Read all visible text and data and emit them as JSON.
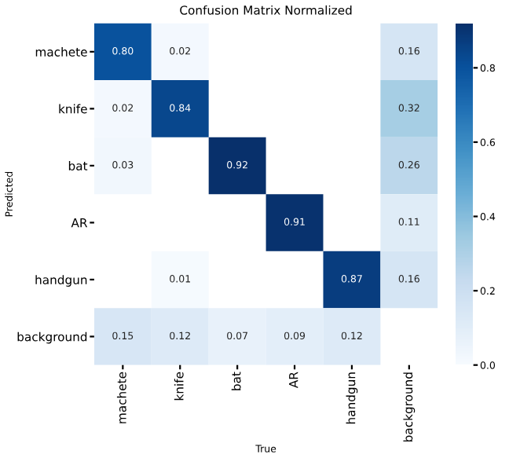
{
  "chart_data": {
    "type": "heatmap",
    "title": "Confusion Matrix Normalized",
    "xlabel": "True",
    "ylabel": "Predicted",
    "categories": [
      "machete",
      "knife",
      "bat",
      "AR",
      "handgun",
      "background"
    ],
    "y_categories": [
      "machete",
      "knife",
      "bat",
      "AR",
      "handgun",
      "background"
    ],
    "cells": [
      [
        0.8,
        0.02,
        null,
        null,
        null,
        0.16
      ],
      [
        0.02,
        0.84,
        null,
        null,
        null,
        0.32
      ],
      [
        0.03,
        null,
        0.92,
        null,
        null,
        0.26
      ],
      [
        null,
        null,
        null,
        0.91,
        null,
        0.11
      ],
      [
        null,
        0.01,
        null,
        null,
        0.87,
        0.16
      ],
      [
        0.15,
        0.12,
        0.07,
        0.09,
        0.12,
        null
      ]
    ],
    "cell_labels": [
      [
        "0.80",
        "0.02",
        null,
        null,
        null,
        "0.16"
      ],
      [
        "0.02",
        "0.84",
        null,
        null,
        null,
        "0.32"
      ],
      [
        "0.03",
        null,
        "0.92",
        null,
        null,
        "0.26"
      ],
      [
        null,
        null,
        null,
        "0.91",
        null,
        "0.11"
      ],
      [
        null,
        "0.01",
        null,
        null,
        "0.87",
        "0.16"
      ],
      [
        "0.15",
        "0.12",
        "0.07",
        "0.09",
        "0.12",
        null
      ]
    ],
    "clim": [
      0,
      0.92
    ],
    "cticks": [
      {
        "value": 0,
        "label": "0.0"
      },
      {
        "value": 0.2,
        "label": "0.2"
      },
      {
        "value": 0.4,
        "label": "0.4"
      },
      {
        "value": 0.6,
        "label": "0.6"
      },
      {
        "value": 0.8,
        "label": "0.8"
      }
    ],
    "data_labels": true
  }
}
